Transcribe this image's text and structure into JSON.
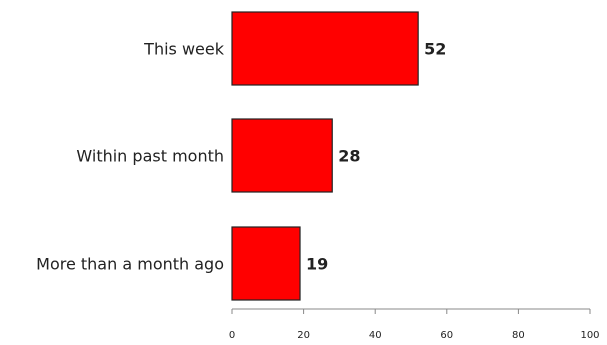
{
  "chart_data": {
    "type": "bar",
    "orientation": "horizontal",
    "categories": [
      "This week",
      "Within past month",
      "More than a month ago"
    ],
    "values": [
      52,
      28,
      19
    ],
    "xlim": [
      0,
      100
    ],
    "x_ticks": [
      0,
      20,
      40,
      60,
      80,
      100
    ],
    "x_tick_labels": [
      "0",
      "20",
      "40",
      "60",
      "80",
      "100"
    ],
    "grid": false,
    "legend": "none",
    "bar_color": "#ff0000",
    "bar_edge_color": "#222222",
    "axis_color": "#888888"
  }
}
